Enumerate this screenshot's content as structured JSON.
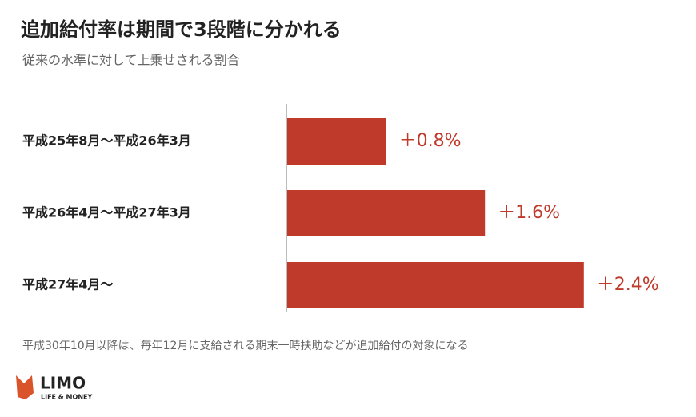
{
  "chart_data": {
    "type": "bar",
    "orientation": "horizontal",
    "title": "追加給付率は期間で3段階に分かれる",
    "subtitle": "従来の水準に対して上乗せされる割合",
    "categories": [
      "平成25年8月～平成26年3月",
      "平成26年4月～平成27年3月",
      "平成27年4月～"
    ],
    "values": [
      0.8,
      1.6,
      2.4
    ],
    "value_labels": [
      "＋0.8%",
      "＋1.6%",
      "＋2.4%"
    ],
    "color": "#bf3a2b",
    "note": "平成30年10月以降は、毎年12月に支給される期末一時扶助などが追加給付の対象になる"
  },
  "brand": {
    "name": "LIMO",
    "tagline": "LIFE & MONEY"
  }
}
